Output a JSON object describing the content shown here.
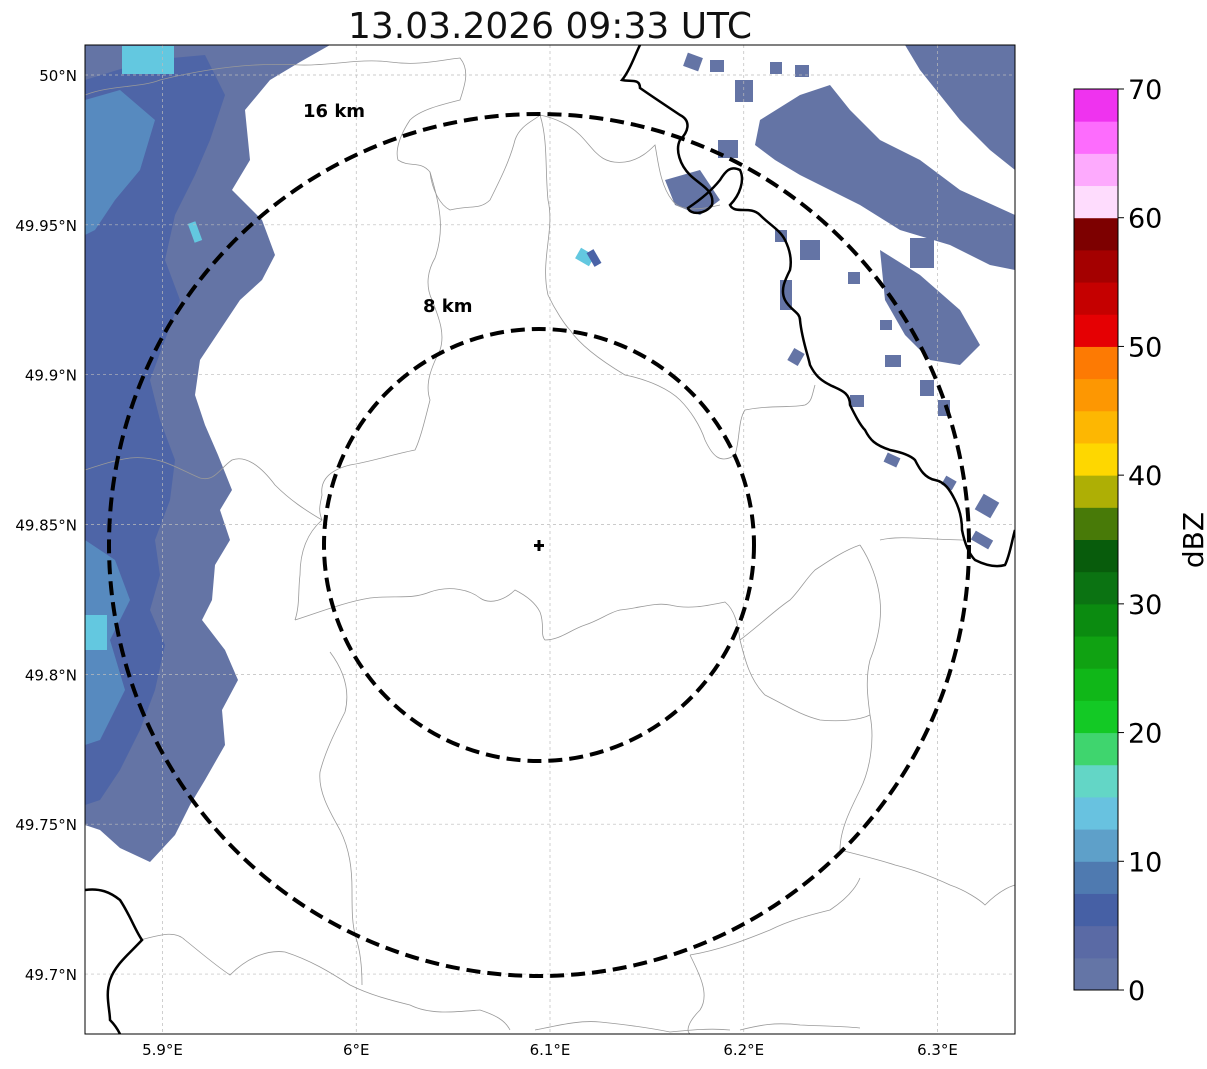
{
  "title": "13.03.2026 09:33 UTC",
  "map": {
    "lon_range": [
      5.86,
      6.34
    ],
    "lat_range": [
      49.68,
      50.01
    ],
    "lat_ticks": [
      {
        "value": 50.0,
        "label": "50°N"
      },
      {
        "value": 49.95,
        "label": "49.95°N"
      },
      {
        "value": 49.9,
        "label": "49.9°N"
      },
      {
        "value": 49.85,
        "label": "49.85°N"
      },
      {
        "value": 49.8,
        "label": "49.8°N"
      },
      {
        "value": 49.75,
        "label": "49.75°N"
      },
      {
        "value": 49.7,
        "label": "49.7°N"
      }
    ],
    "lon_ticks": [
      {
        "value": 5.9,
        "label": "5.9°E"
      },
      {
        "value": 6.0,
        "label": "6°E"
      },
      {
        "value": 6.1,
        "label": "6.1°E"
      },
      {
        "value": 6.2,
        "label": "6.2°E"
      },
      {
        "value": 6.3,
        "label": "6.3°E"
      }
    ],
    "radar_site": {
      "lon": 6.095,
      "lat": 49.845
    },
    "range_rings": [
      {
        "radius_km": 8,
        "label": "8 km"
      },
      {
        "radius_km": 16,
        "label": "16 km"
      }
    ]
  },
  "colorbar": {
    "label": "dBZ",
    "min": 0,
    "max": 70,
    "ticks": [
      {
        "value": 0,
        "label": "0"
      },
      {
        "value": 10,
        "label": "10"
      },
      {
        "value": 20,
        "label": "20"
      },
      {
        "value": 30,
        "label": "30"
      },
      {
        "value": 40,
        "label": "40"
      },
      {
        "value": 50,
        "label": "50"
      },
      {
        "value": 60,
        "label": "60"
      },
      {
        "value": 70,
        "label": "70"
      }
    ],
    "colors": [
      "#6475a6",
      "#5a6aa5",
      "#4660a5",
      "#4f7ab0",
      "#5ea0c9",
      "#68c2e0",
      "#63d6c6",
      "#3fd56e",
      "#13c925",
      "#10b718",
      "#10a212",
      "#0b8b10",
      "#0b7312",
      "#085c0c",
      "#487a08",
      "#aeaf05",
      "#fed700",
      "#fdb702",
      "#fd9702",
      "#fd7a03",
      "#e50003",
      "#c50000",
      "#a40000",
      "#7d0000",
      "#fedcfd",
      "#fdaafd",
      "#fd6cfd",
      "#ef33ef"
    ]
  },
  "colors": {
    "echo_base": "#6474a5",
    "echo_dark": "#4a63a7",
    "echo_mid": "#5a94c5",
    "echo_light": "#63c8e0",
    "border": "#999999",
    "grid": "#bbbbbb"
  }
}
